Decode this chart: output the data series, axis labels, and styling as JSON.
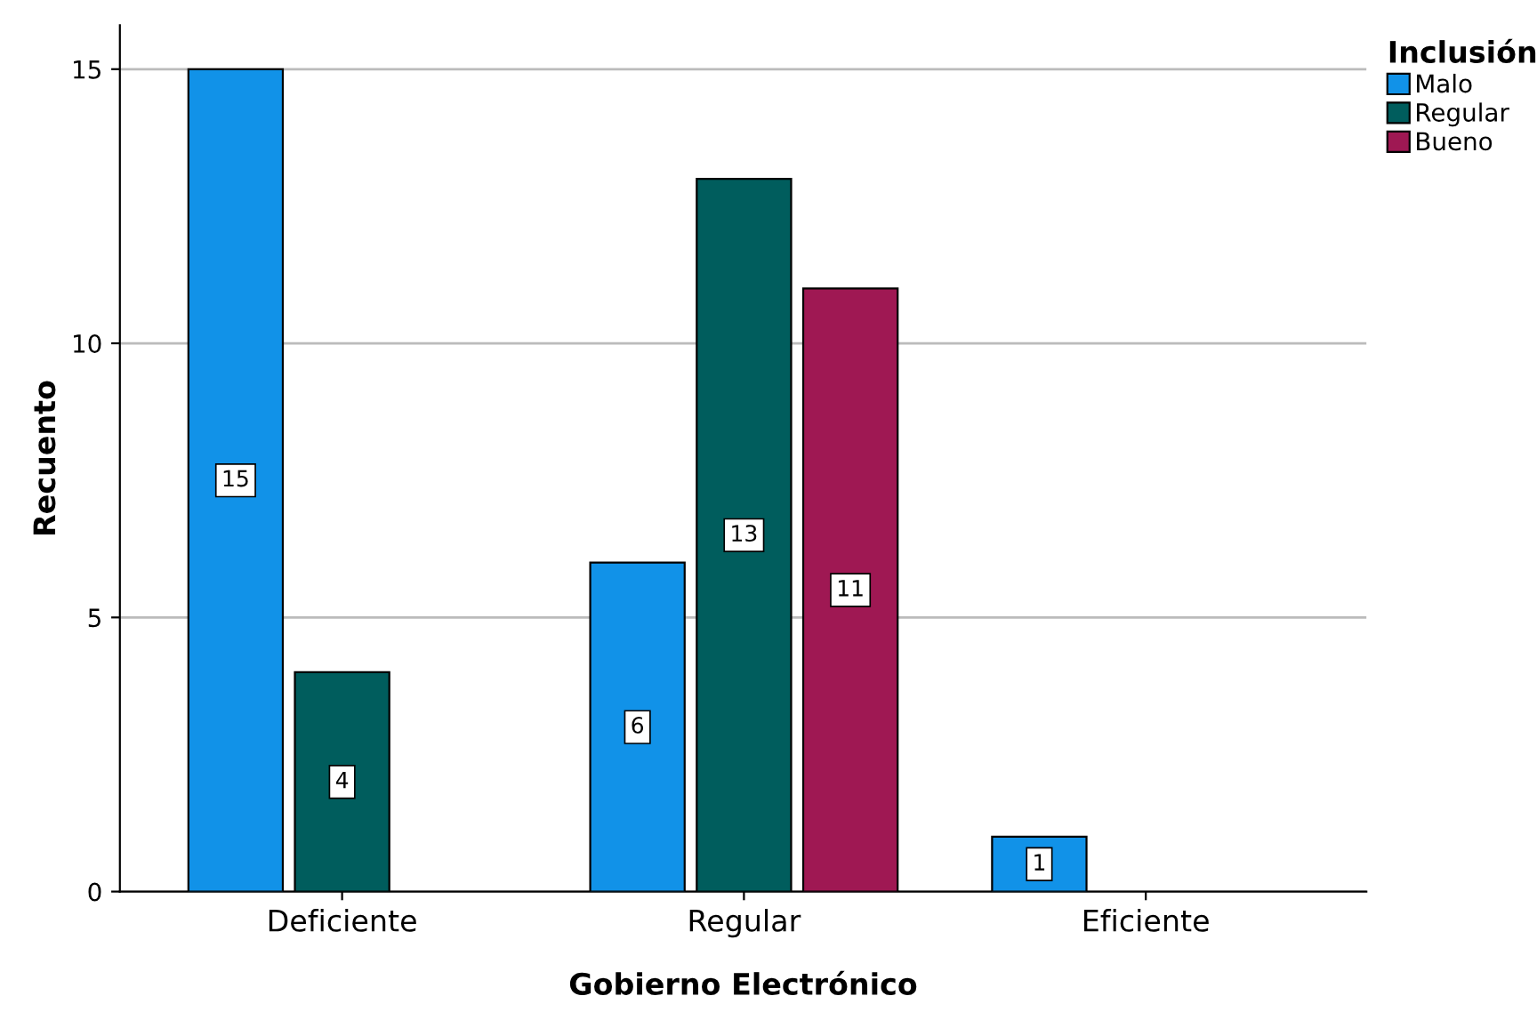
{
  "chart_data": {
    "type": "bar",
    "xlabel": "Gobierno Electrónico",
    "ylabel": "Recuento",
    "legend_title": "Inclusión",
    "categories": [
      "Deficiente",
      "Regular",
      "Eficiente"
    ],
    "series": [
      {
        "name": "Malo",
        "color": "#1192e8",
        "values": [
          15,
          6,
          1
        ]
      },
      {
        "name": "Regular",
        "color": "#005d5d",
        "values": [
          4,
          13,
          null
        ]
      },
      {
        "name": "Bueno",
        "color": "#9f1853",
        "values": [
          null,
          11,
          null
        ]
      }
    ],
    "ylim": [
      0,
      15.8
    ],
    "yticks": [
      0,
      5,
      10,
      15
    ],
    "grid": "y",
    "legend": "top right",
    "data_labels": true
  }
}
